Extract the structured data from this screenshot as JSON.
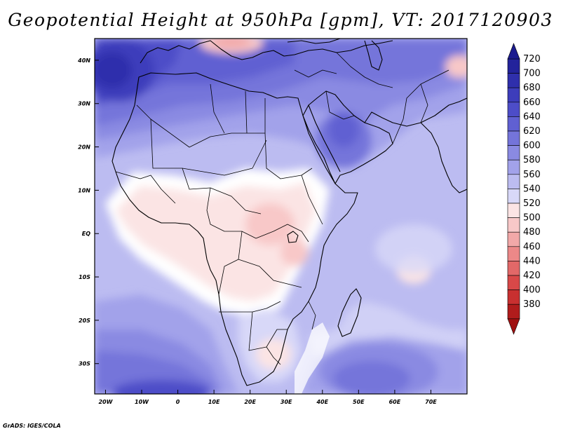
{
  "title": "Geopotential Height at 950hPa [gpm], VT: 2017120903",
  "credit": "GrADS: IGES/COLA",
  "map": {
    "lon_range": [
      -23,
      80
    ],
    "lat_range": [
      -37,
      45
    ],
    "lat_labels": [
      {
        "lat": 40,
        "text": "40N"
      },
      {
        "lat": 30,
        "text": "30N"
      },
      {
        "lat": 20,
        "text": "20N"
      },
      {
        "lat": 10,
        "text": "10N"
      },
      {
        "lat": 0,
        "text": "EQ"
      },
      {
        "lat": -10,
        "text": "10S"
      },
      {
        "lat": -20,
        "text": "20S"
      },
      {
        "lat": -30,
        "text": "30S"
      }
    ],
    "lon_labels": [
      {
        "lon": -20,
        "text": "20W"
      },
      {
        "lon": -10,
        "text": "10W"
      },
      {
        "lon": 0,
        "text": "0"
      },
      {
        "lon": 10,
        "text": "10E"
      },
      {
        "lon": 20,
        "text": "20E"
      },
      {
        "lon": 30,
        "text": "30E"
      },
      {
        "lon": 40,
        "text": "40E"
      },
      {
        "lon": 50,
        "text": "50E"
      },
      {
        "lon": 60,
        "text": "60E"
      },
      {
        "lon": 70,
        "text": "70E"
      }
    ]
  },
  "colorbar": {
    "levels": [
      "720",
      "700",
      "680",
      "660",
      "640",
      "620",
      "600",
      "580",
      "560",
      "540",
      "520",
      "500",
      "480",
      "460",
      "440",
      "420",
      "400",
      "380"
    ],
    "colors": [
      "#23239b",
      "#2f2fac",
      "#3d3dbb",
      "#4d4dc8",
      "#6060d2",
      "#7474da",
      "#8a8ae2",
      "#a2a2ea",
      "#bcbcf1",
      "#d8d8f8",
      "#fbe4e4",
      "#f8c8c8",
      "#f2a8a8",
      "#ec8888",
      "#e26868",
      "#d84848",
      "#c83030",
      "#b01c1c"
    ]
  },
  "field_colors": {
    "c720": "#23239b",
    "c700": "#2f2fac",
    "c680": "#3d3dbb",
    "c660": "#4d4dc8",
    "c640": "#6060d2",
    "c620": "#7474da",
    "c600": "#8a8ae2",
    "c580": "#a2a2ea",
    "c560": "#bcbcf1",
    "c540": "#d8d8f8",
    "white": "#ffffff",
    "c520": "#fbe4e4",
    "c500": "#f8c8c8",
    "c480": "#f2a8a8",
    "c460": "#ec8888"
  }
}
